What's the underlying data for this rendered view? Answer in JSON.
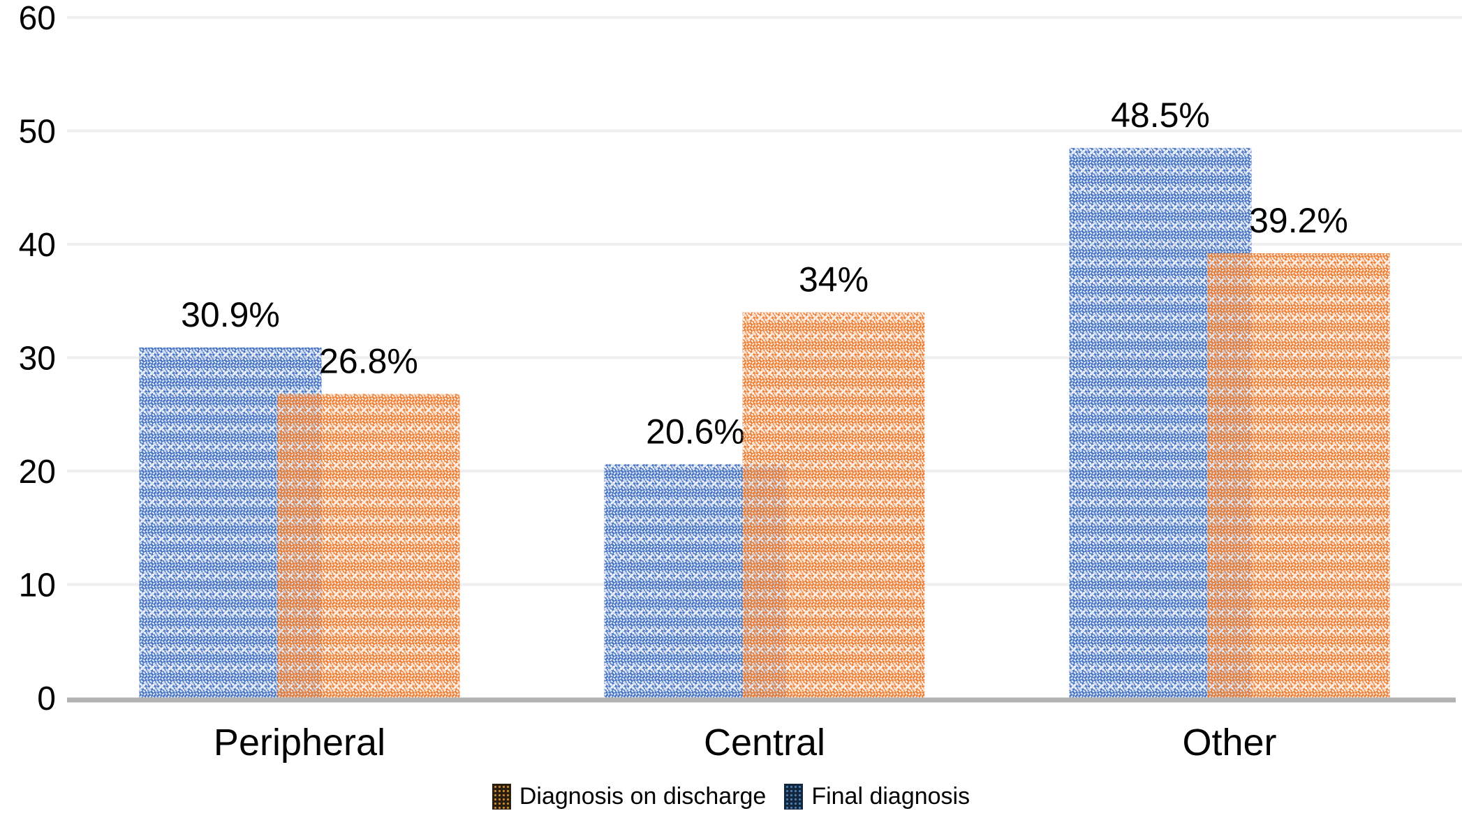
{
  "chart_data": {
    "type": "bar",
    "variant": "grouped-overlapping-pattern-fill",
    "categories": [
      "Peripheral",
      "Central",
      "Other"
    ],
    "series": [
      {
        "name": "Diagnosis on discharge",
        "color": "#ED7D31",
        "values": [
          26.8,
          34,
          39.2
        ],
        "labels": [
          "26.8%",
          "34%",
          "39.2%"
        ],
        "position": "front-right",
        "swatch": {
          "bg": "#2a1f0d",
          "dot": "#cf8a33"
        }
      },
      {
        "name": "Final diagnosis",
        "color": "#4472C4",
        "values": [
          30.9,
          20.6,
          48.5
        ],
        "labels": [
          "30.9%",
          "20.6%",
          "48.5%"
        ],
        "position": "back-left",
        "swatch": {
          "bg": "#13273f",
          "dot": "#4e7fb5"
        }
      }
    ],
    "yticks": [
      0,
      10,
      20,
      30,
      40,
      50,
      60
    ],
    "ylim": [
      0,
      60
    ],
    "legend_position": "bottom-center",
    "grid": true,
    "colors": {
      "grid": "#efefef",
      "axis": "#b2b2b2",
      "text": "#000000",
      "background": "#ffffff"
    }
  }
}
